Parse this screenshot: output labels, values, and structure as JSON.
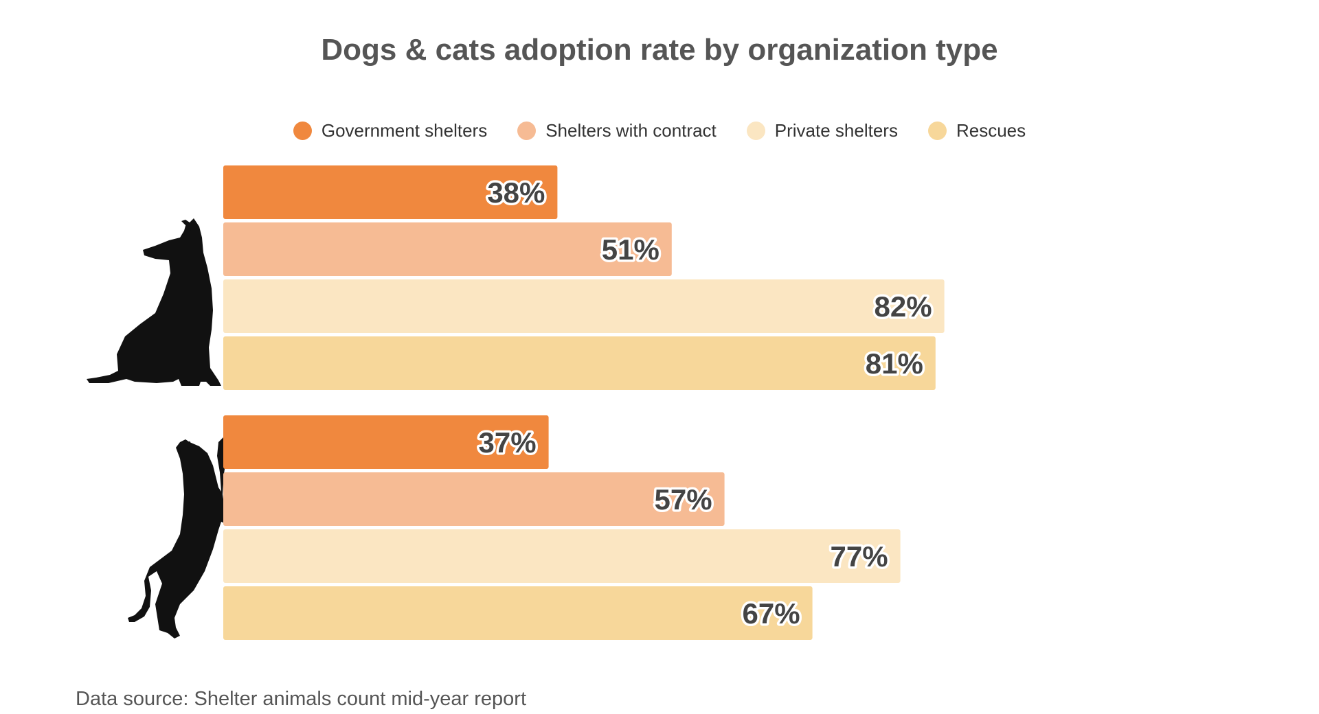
{
  "chart_data": {
    "type": "bar",
    "orientation": "horizontal",
    "title": "Dogs & cats adoption rate by organization type",
    "categories": [
      "Dogs",
      "Cats"
    ],
    "category_icons": [
      "dog-silhouette-icon",
      "cat-silhouette-icon"
    ],
    "series": [
      {
        "name": "Government shelters",
        "color": "#F0883E",
        "values": [
          38,
          37
        ]
      },
      {
        "name": "Shelters with contract",
        "color": "#F6BB94",
        "values": [
          51,
          57
        ]
      },
      {
        "name": "Private shelters",
        "color": "#FBE6C2",
        "values": [
          82,
          77
        ]
      },
      {
        "name": "Rescues",
        "color": "#F7D79A",
        "values": [
          81,
          67
        ]
      }
    ],
    "value_suffix": "%",
    "xlim": [
      0,
      100
    ],
    "grid": false,
    "legend_position": "top-center"
  },
  "source": "Data source: Shelter animals count mid-year report"
}
